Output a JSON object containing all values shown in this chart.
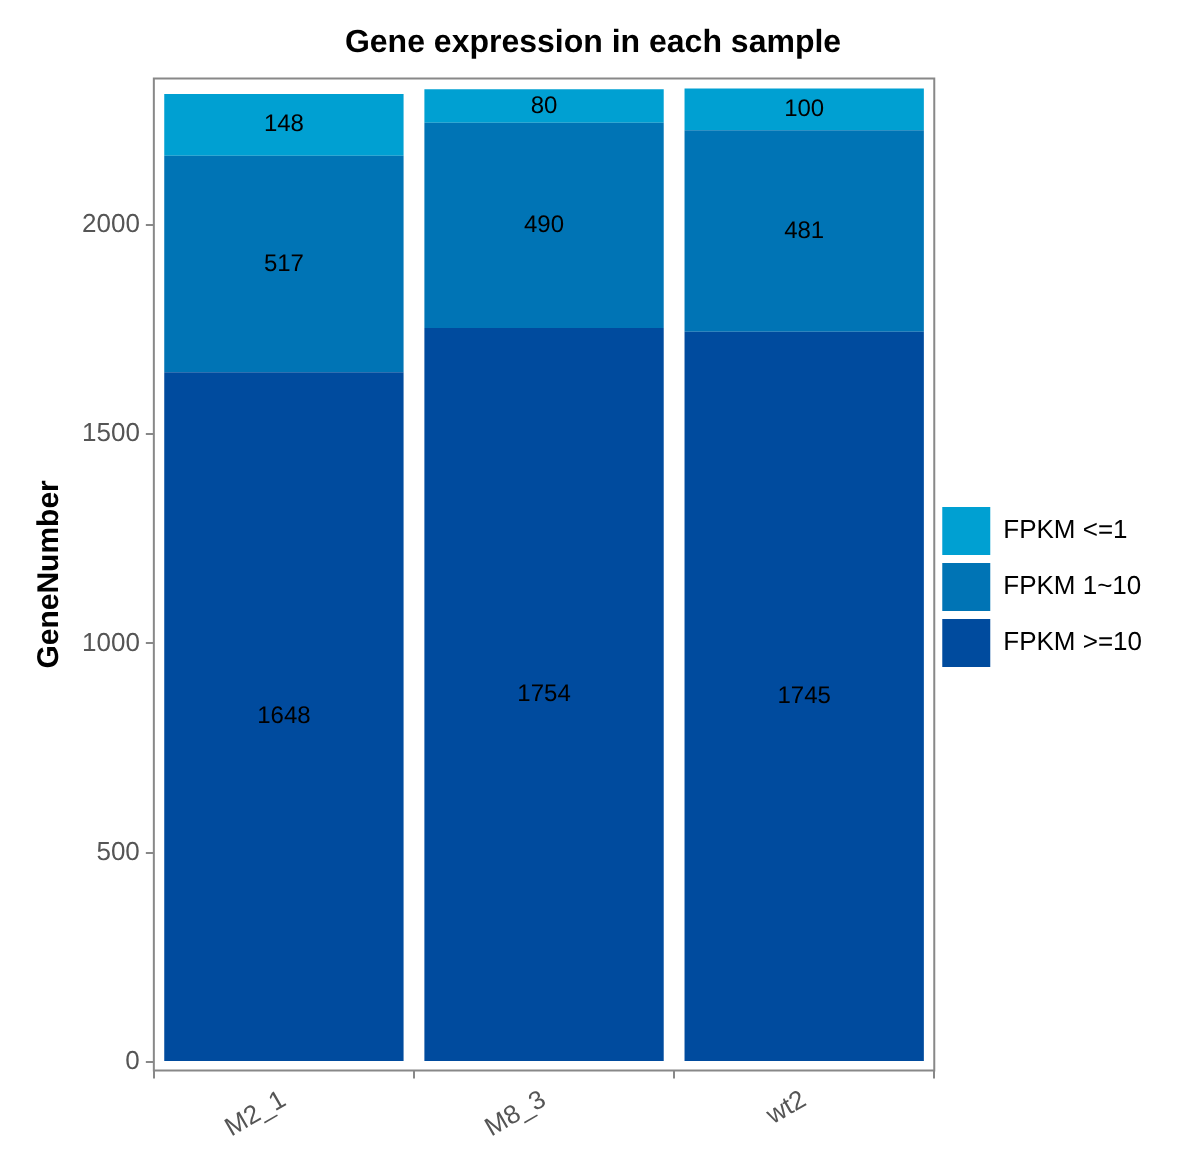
{
  "chart_data": {
    "type": "bar",
    "title": "Gene expression in each sample",
    "ylabel": "GeneNumber",
    "categories": [
      "M2_1",
      "M8_3",
      "wt2"
    ],
    "series": [
      {
        "name": "FPKM >=10",
        "color": "#004b9e",
        "values": [
          1648,
          1754,
          1745
        ]
      },
      {
        "name": "FPKM 1~10",
        "color": "#0074b5",
        "values": [
          517,
          490,
          481
        ]
      },
      {
        "name": "FPKM <=1",
        "color": "#00a0d2",
        "values": [
          148,
          80,
          100
        ]
      }
    ],
    "stacked": true,
    "data_labels": true,
    "ylim": [
      -20,
      2350
    ],
    "yticks": [
      0,
      500,
      1000,
      1500,
      2000
    ],
    "grid": false,
    "legend": "right"
  }
}
